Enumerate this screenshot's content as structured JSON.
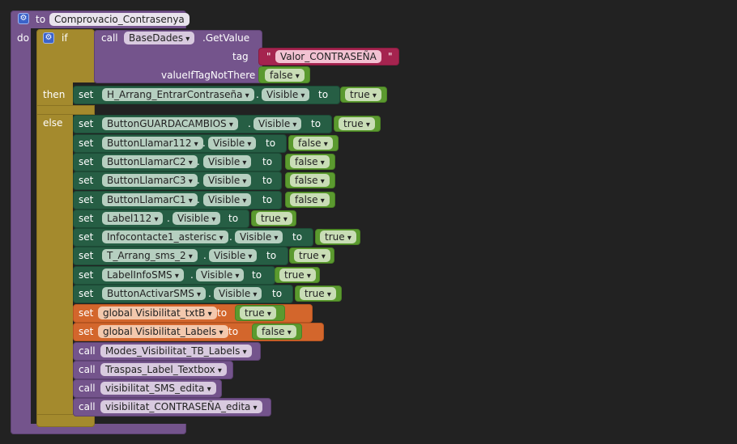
{
  "procedure": {
    "keyword_to": "to",
    "name": "Comprovacio_Contrasenya",
    "keyword_do": "do"
  },
  "if_block": {
    "keyword_if": "if",
    "keyword_then": "then",
    "keyword_else": "else",
    "condition": {
      "keyword_call": "call",
      "component": "BaseDades",
      "method": ".GetValue",
      "tag_label": "tag",
      "tag_value": "Valor_CONTRASEÑA",
      "quote_open": "\"",
      "quote_close": "\"",
      "default_label": "valueIfTagNotThere",
      "default_value": "false"
    }
  },
  "then_statements": [
    {
      "keyword": "set",
      "component": "H_Arrang_EntrarContraseña",
      "dot": ".",
      "property": "Visible",
      "to": "to",
      "value": "true"
    }
  ],
  "else_statements": [
    {
      "keyword": "set",
      "component": "ButtonGUARDACAMBIOS",
      "dot": ".",
      "property": "Visible",
      "to": "to",
      "value": "true"
    },
    {
      "keyword": "set",
      "component": "ButtonLlamar112",
      "dot": ".",
      "property": "Visible",
      "to": "to",
      "value": "false"
    },
    {
      "keyword": "set",
      "component": "ButtonLlamarC2",
      "dot": ".",
      "property": "Visible",
      "to": "to",
      "value": "false"
    },
    {
      "keyword": "set",
      "component": "ButtonLlamarC3",
      "dot": ".",
      "property": "Visible",
      "to": "to",
      "value": "false"
    },
    {
      "keyword": "set",
      "component": "ButtonLlamarC1",
      "dot": ".",
      "property": "Visible",
      "to": "to",
      "value": "false"
    },
    {
      "keyword": "set",
      "component": "Label112",
      "dot": ".",
      "property": "Visible",
      "to": "to",
      "value": "true"
    },
    {
      "keyword": "set",
      "component": "Infocontacte1_asterisc",
      "dot": ".",
      "property": "Visible",
      "to": "to",
      "value": "true"
    },
    {
      "keyword": "set",
      "component": "T_Arrang_sms_2",
      "dot": ".",
      "property": "Visible",
      "to": "to",
      "value": "true"
    },
    {
      "keyword": "set",
      "component": "LabelInfoSMS",
      "dot": ".",
      "property": "Visible",
      "to": "to",
      "value": "true"
    },
    {
      "keyword": "set",
      "component": "ButtonActivarSMS",
      "dot": ".",
      "property": "Visible",
      "to": "to",
      "value": "true"
    }
  ],
  "global_sets": [
    {
      "keyword": "set",
      "variable": "global Visibilitat_txtB",
      "to": "to",
      "value": "true"
    },
    {
      "keyword": "set",
      "variable": "global Visibilitat_Labels",
      "to": "to",
      "value": "false"
    }
  ],
  "calls": [
    {
      "keyword": "call",
      "procedure": "Modes_Visibilitat_TB_Labels"
    },
    {
      "keyword": "call",
      "procedure": "Traspas_Label_Textbox"
    },
    {
      "keyword": "call",
      "procedure": "visibilitat_SMS_edita"
    },
    {
      "keyword": "call",
      "procedure": "visibilitat_CONTRASEÑA_edita"
    }
  ],
  "colors": {
    "background": "#222222",
    "procedure": "#74548c",
    "control": "#a48a2d",
    "component_set": "#265e44",
    "logic": "#5b9a2f",
    "variable": "#d3662c",
    "text": "#a5244f"
  }
}
